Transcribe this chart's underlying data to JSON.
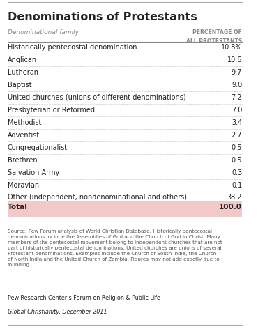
{
  "title": "Denominations of Protestants",
  "col1_header": "Denominational family",
  "col2_header_line1": "PERCENTAGE OF",
  "col2_header_line2": "ALL PROTESTANTS",
  "rows": [
    [
      "Historically pentecostal denomination",
      "10.8%"
    ],
    [
      "Anglican",
      "10.6"
    ],
    [
      "Lutheran",
      "9.7"
    ],
    [
      "Baptist",
      "9.0"
    ],
    [
      "United churches (unions of different denominations)",
      "7.2"
    ],
    [
      "Presbyterian or Reformed",
      "7.0"
    ],
    [
      "Methodist",
      "3.4"
    ],
    [
      "Adventist",
      "2.7"
    ],
    [
      "Congregationalist",
      "0.5"
    ],
    [
      "Brethren",
      "0.5"
    ],
    [
      "Salvation Army",
      "0.3"
    ],
    [
      "Moravian",
      "0.1"
    ],
    [
      "Other (independent, nondenominational and others)",
      "38.2"
    ]
  ],
  "total_label": "Total",
  "total_value": "100.0",
  "total_bg": "#f2c8c8",
  "source_text": "Source: Pew Forum analysis of World Christian Database. Historically pentecostal\ndenominations include the Assemblies of God and the Church of God in Christ. Many\nmembers of the pentecostal movement belong to independent churches that are not\npart of historically pentecostal denominations. United churches are unions of several\nProtestant denominations. Examples include the Church of South India, the Church\nof North India and the United Church of Zambia. Figures may not add exactly due to\nrounding.",
  "footer_line1": "Pew Research Center’s Forum on Religion & Public Life",
  "footer_line2": "Global Christianity, December 2011",
  "bg_color": "#ffffff",
  "row_line_color": "#cccccc",
  "text_color": "#222222",
  "header_color": "#888888",
  "source_color": "#555555",
  "border_color": "#aaaaaa"
}
